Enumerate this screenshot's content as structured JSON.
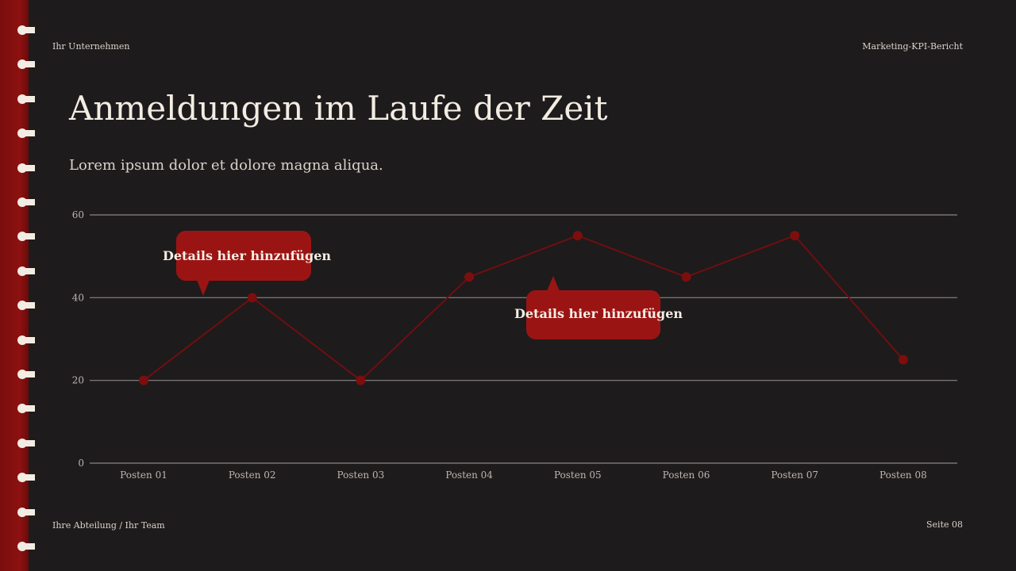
{
  "header": {
    "company": "Ihr Unternehmen",
    "report": "Marketing-KPI-Bericht"
  },
  "title": "Anmeldungen im Laufe der Zeit",
  "subtitle": "Lorem ipsum dolor et dolore magna aliqua.",
  "footer": {
    "department": "Ihre Abteilung / Ihr Team",
    "page": "Seite 08"
  },
  "callouts": [
    "Details hier hinzufügen",
    "Details hier hinzufügen"
  ],
  "colors": {
    "background": "#1e1b1c",
    "accent": "#9b1414",
    "line": "#6e0f10"
  },
  "chart_data": {
    "type": "line",
    "categories": [
      "Posten 01",
      "Posten 02",
      "Posten 03",
      "Posten 04",
      "Posten 05",
      "Posten 06",
      "Posten 07",
      "Posten 08"
    ],
    "values": [
      20,
      40,
      20,
      45,
      55,
      45,
      55,
      25
    ],
    "ylim": [
      0,
      60
    ],
    "yticks": [
      "0",
      "20",
      "40",
      "60"
    ],
    "grid": true,
    "title": "",
    "xlabel": "",
    "ylabel": ""
  }
}
